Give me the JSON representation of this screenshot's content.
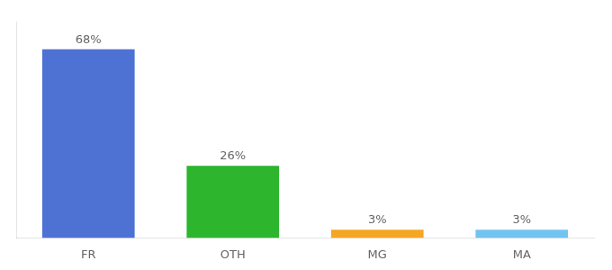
{
  "chart_data": {
    "type": "bar",
    "categories": [
      "FR",
      "OTH",
      "MG",
      "MA"
    ],
    "values": [
      68,
      26,
      3,
      3
    ],
    "value_labels": [
      "68%",
      "26%",
      "3%",
      "3%"
    ],
    "data_labels": true,
    "colors": [
      "#4d72d4",
      "#2db52d",
      "#f5a623",
      "#72c4f0"
    ],
    "ylim": [
      0,
      78
    ],
    "grid": false,
    "tick_labels": "x"
  }
}
